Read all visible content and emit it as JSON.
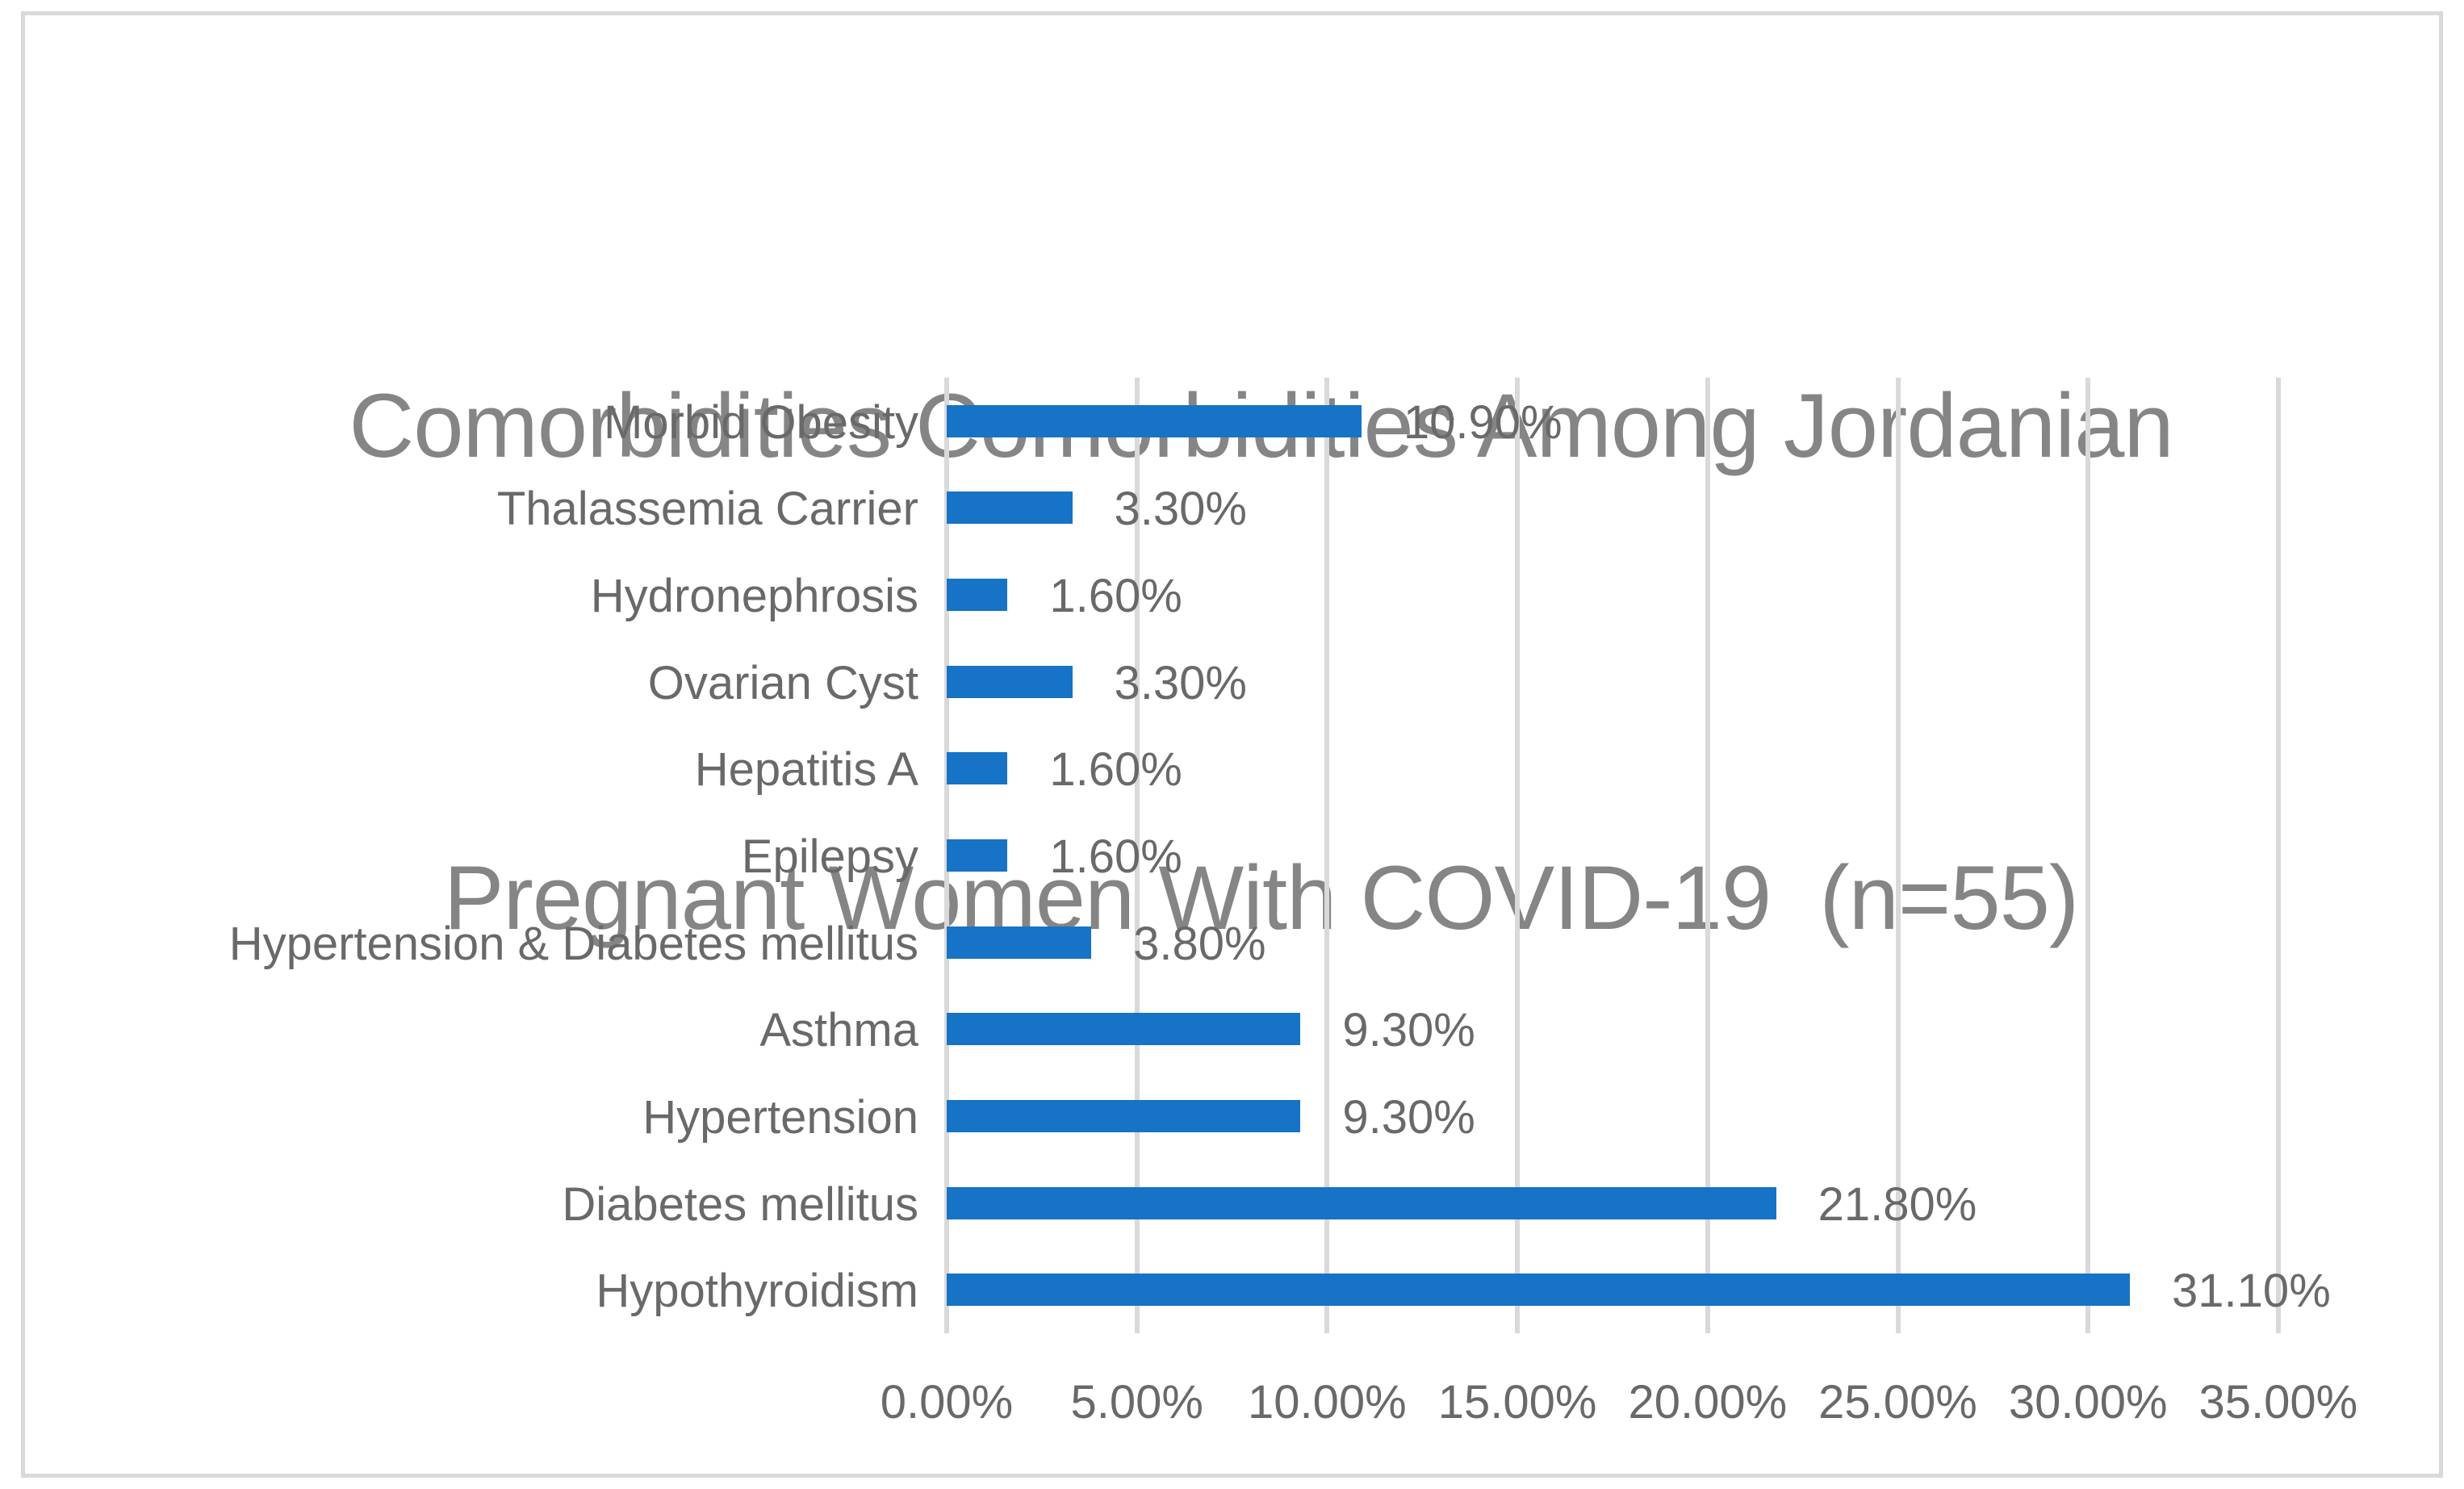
{
  "chart_data": {
    "type": "bar",
    "orientation": "horizontal",
    "title": "Comorbidities Comorbidities Among Jordanian Pregnant Women With COVID-19  (n=55)",
    "title_lines": [
      "Comorbidities Comorbidities Among Jordanian",
      "Pregnant Women With COVID-19  (n=55)"
    ],
    "categories": [
      "Morbid Obesity",
      "Thalassemia Carrier",
      "Hydronephrosis",
      "Ovarian Cyst",
      "Hepatitis A",
      "Epilepsy",
      "Hypertension & Diabetes mellitus",
      "Asthma",
      "Hypertension",
      "Diabetes mellitus",
      "Hypothyroidism"
    ],
    "values": [
      10.9,
      3.3,
      1.6,
      3.3,
      1.6,
      1.6,
      3.8,
      9.3,
      9.3,
      21.8,
      31.1
    ],
    "data_labels": [
      "10.90%",
      "3.30%",
      "1.60%",
      "3.30%",
      "1.60%",
      "1.60%",
      "3.80%",
      "9.30%",
      "9.30%",
      "21.80%",
      "31.10%"
    ],
    "x_tick_labels": [
      "0.00%",
      "5.00%",
      "10.00%",
      "15.00%",
      "20.00%",
      "25.00%",
      "30.00%",
      "35.00%"
    ],
    "x_tick_values": [
      0,
      5,
      10,
      15,
      20,
      25,
      30,
      35
    ],
    "xlim": [
      0,
      35
    ],
    "grid": true,
    "legend": "none",
    "colors": {
      "bar": "#1673C5",
      "gridline": "#D9D9D9",
      "frame_border": "#D9D9D9",
      "title_text": "#858585",
      "label_text": "#696969",
      "background": "#FFFFFF"
    }
  }
}
